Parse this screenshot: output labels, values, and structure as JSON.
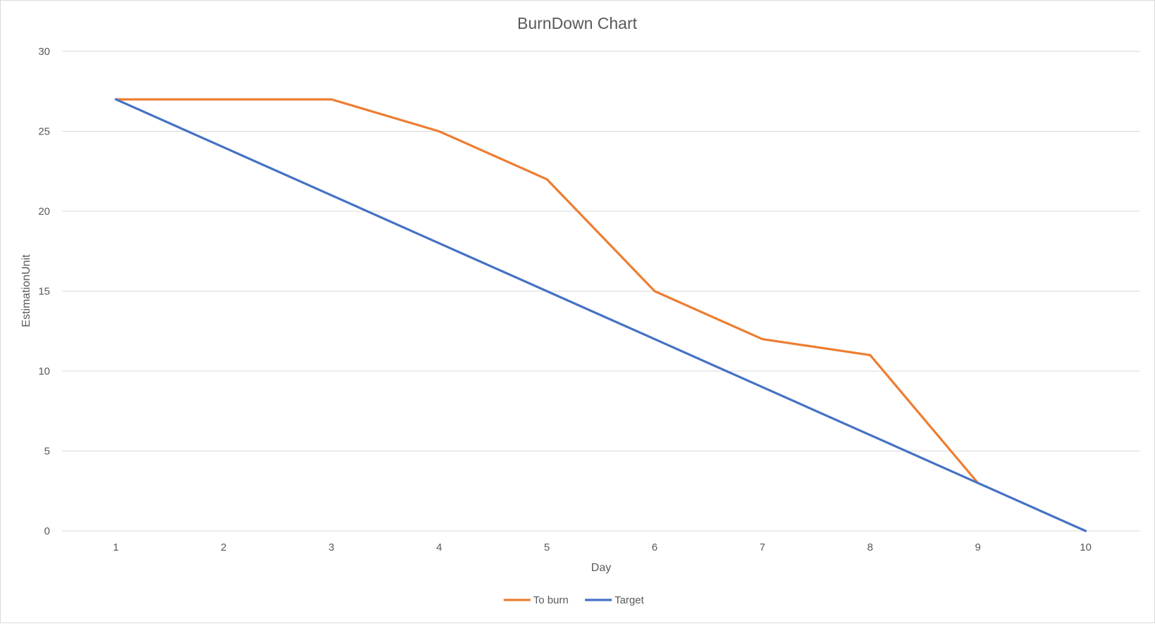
{
  "chart_data": {
    "type": "line",
    "title": "BurnDown Chart",
    "xlabel": "Day",
    "ylabel": "EstimationUnit",
    "categories": [
      "1",
      "2",
      "3",
      "4",
      "5",
      "6",
      "7",
      "8",
      "9",
      "10"
    ],
    "ylim": [
      0,
      30
    ],
    "yticks": [
      0,
      5,
      10,
      15,
      20,
      25,
      30
    ],
    "grid": true,
    "legend_position": "bottom",
    "series": [
      {
        "name": "To burn",
        "color": "#ed7d31",
        "values": [
          27,
          27,
          27,
          25,
          22,
          15,
          12,
          11,
          3,
          null
        ]
      },
      {
        "name": "Target",
        "color": "#4472c4",
        "values": [
          27,
          24,
          21,
          18,
          15,
          12,
          9,
          6,
          3,
          0
        ]
      }
    ]
  }
}
